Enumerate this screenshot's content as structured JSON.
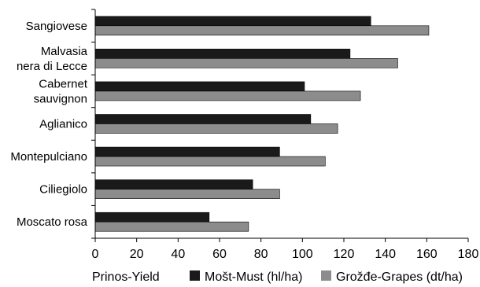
{
  "chart_data": {
    "type": "bar",
    "orientation": "horizontal",
    "categories": [
      [
        "Sangiovese"
      ],
      [
        "Malvasia",
        "nera di Lecce"
      ],
      [
        "Cabernet",
        "sauvignon"
      ],
      [
        "Aglianico"
      ],
      [
        "Montepulciano"
      ],
      [
        "Ciliegiolo"
      ],
      [
        "Moscato rosa"
      ]
    ],
    "series": [
      {
        "name": "Mošt-Must (hl/ha)",
        "color": "#1a1a1a",
        "values": [
          133,
          123,
          101,
          104,
          89,
          76,
          55
        ]
      },
      {
        "name": "Grožđe-Grapes (dt/ha)",
        "color": "#8c8c8c",
        "values": [
          161,
          146,
          128,
          117,
          111,
          89,
          74
        ]
      }
    ],
    "xlabel": "Prinos-Yield",
    "xlim": [
      0,
      180
    ],
    "xticks": [
      0,
      20,
      40,
      60,
      80,
      100,
      120,
      140,
      160,
      180
    ],
    "grid": false,
    "legend_position": "bottom"
  }
}
